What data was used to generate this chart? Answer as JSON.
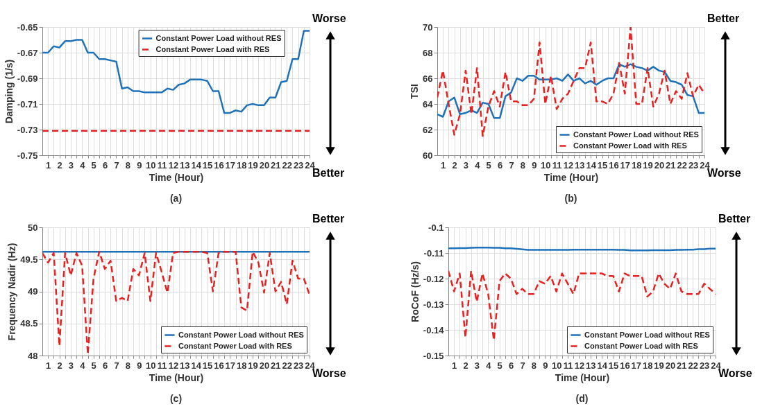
{
  "chart_data": [
    {
      "type": "line",
      "xlabel": "Time (Hour)",
      "ylabel": "Damping (1/s)",
      "annotations": [
        "Worse",
        "Better",
        "(a)"
      ],
      "legend": "top right",
      "grid": true,
      "x": [
        0.5,
        1,
        1.5,
        2,
        2.5,
        3,
        3.5,
        4,
        4.5,
        5,
        5.5,
        6,
        6.5,
        7,
        7.5,
        8,
        8.5,
        9,
        9.5,
        10,
        10.5,
        11,
        11.5,
        12,
        12.5,
        13,
        13.5,
        14,
        14.5,
        15,
        15.5,
        16,
        16.5,
        17,
        17.5,
        18,
        18.5,
        19,
        19.5,
        20,
        20.5,
        21,
        21.5,
        22,
        22.5,
        23,
        23.5,
        24
      ],
      "xlim": [
        0.5,
        24
      ],
      "ylim": [
        -0.75,
        -0.65
      ],
      "yticks": [
        -0.75,
        -0.73,
        -0.71,
        -0.69,
        -0.67,
        -0.65
      ],
      "xticks": [
        1,
        {
          "value": 1.5,
          "label": null
        },
        2,
        {
          "value": 2.5,
          "label": null
        },
        3,
        {
          "value": 3.5,
          "label": null
        },
        4,
        {
          "value": 4.5,
          "label": null
        },
        5,
        {
          "value": 5.5,
          "label": null
        },
        6,
        {
          "value": 6.5,
          "label": null
        },
        7,
        {
          "value": 7.5,
          "label": null
        },
        8,
        {
          "value": 8.5,
          "label": null
        },
        9,
        {
          "value": 9.5,
          "label": null
        },
        10,
        {
          "value": 10.5,
          "label": null
        },
        11,
        {
          "value": 11.5,
          "label": null
        },
        12,
        {
          "value": 12.5,
          "label": null
        },
        13,
        {
          "value": 13.5,
          "label": null
        },
        14,
        {
          "value": 14.5,
          "label": null
        },
        15,
        {
          "value": 15.5,
          "label": null
        },
        16,
        {
          "value": 16.5,
          "label": null
        },
        17,
        {
          "value": 17.5,
          "label": null
        },
        18,
        {
          "value": 18.5,
          "label": null
        },
        19,
        {
          "value": 19.5,
          "label": null
        },
        20,
        {
          "value": 20.5,
          "label": null
        },
        21,
        {
          "value": 21.5,
          "label": null
        },
        22,
        {
          "value": 22.5,
          "label": null
        },
        23,
        {
          "value": 23.5,
          "label": null
        },
        24
      ],
      "series": [
        {
          "name": "Constant Power Load without RES",
          "color": "#1f72b8",
          "line_style": "solid",
          "values": [
            -0.67,
            -0.67,
            -0.665,
            -0.666,
            -0.661,
            -0.661,
            -0.66,
            -0.66,
            -0.67,
            -0.67,
            -0.675,
            -0.675,
            -0.676,
            -0.677,
            -0.698,
            -0.697,
            -0.7,
            -0.7,
            -0.701,
            -0.701,
            -0.701,
            -0.701,
            -0.698,
            -0.699,
            -0.695,
            -0.694,
            -0.691,
            -0.691,
            -0.691,
            -0.692,
            -0.7,
            -0.7,
            -0.717,
            -0.717,
            -0.715,
            -0.716,
            -0.711,
            -0.71,
            -0.711,
            -0.711,
            -0.705,
            -0.705,
            -0.693,
            -0.692,
            -0.675,
            -0.675,
            -0.653,
            -0.653
          ]
        },
        {
          "name": "Constant Power Load with RES",
          "color": "#e8201f",
          "line_style": "dashed",
          "values": [
            -0.731,
            -0.731,
            -0.731,
            -0.731,
            -0.731,
            -0.731,
            -0.731,
            -0.731,
            -0.731,
            -0.731,
            -0.731,
            -0.731,
            -0.731,
            -0.731,
            -0.731,
            -0.731,
            -0.731,
            -0.731,
            -0.731,
            -0.731,
            -0.731,
            -0.731,
            -0.731,
            -0.731,
            -0.731,
            -0.731,
            -0.731,
            -0.731,
            -0.731,
            -0.731,
            -0.731,
            -0.731,
            -0.731,
            -0.731,
            -0.731,
            -0.731,
            -0.731,
            -0.731,
            -0.731,
            -0.731,
            -0.731,
            -0.731,
            -0.731,
            -0.731,
            -0.731,
            -0.731,
            -0.731,
            -0.731
          ]
        }
      ]
    },
    {
      "type": "line",
      "xlabel": "Time (Hour)",
      "ylabel": "TSI",
      "annotations": [
        "Better",
        "Worse",
        "(b)"
      ],
      "legend": "bottom right",
      "grid": true,
      "x": [
        0.5,
        1,
        1.5,
        2,
        2.5,
        3,
        3.5,
        4,
        4.5,
        5,
        5.5,
        6,
        6.5,
        7,
        7.5,
        8,
        8.5,
        9,
        9.5,
        10,
        10.5,
        11,
        11.5,
        12,
        12.5,
        13,
        13.5,
        14,
        14.5,
        15,
        15.5,
        16,
        16.5,
        17,
        17.5,
        18,
        18.5,
        19,
        19.5,
        20,
        20.5,
        21,
        21.5,
        22,
        22.5,
        23,
        23.5,
        24
      ],
      "xlim": [
        0.5,
        24
      ],
      "ylim": [
        60,
        70
      ],
      "yticks": [
        60,
        62,
        64,
        66,
        68,
        70
      ],
      "xticks": [
        1,
        {
          "value": 1.5,
          "label": null
        },
        2,
        {
          "value": 2.5,
          "label": null
        },
        3,
        {
          "value": 3.5,
          "label": null
        },
        4,
        {
          "value": 4.5,
          "label": null
        },
        5,
        {
          "value": 5.5,
          "label": null
        },
        6,
        {
          "value": 6.5,
          "label": null
        },
        7,
        {
          "value": 7.5,
          "label": null
        },
        8,
        {
          "value": 8.5,
          "label": null
        },
        9,
        {
          "value": 9.5,
          "label": null
        },
        10,
        {
          "value": 10.5,
          "label": null
        },
        11,
        {
          "value": 11.5,
          "label": null
        },
        12,
        {
          "value": 12.5,
          "label": null
        },
        13,
        {
          "value": 13.5,
          "label": null
        },
        14,
        {
          "value": 14.5,
          "label": null
        },
        15,
        {
          "value": 15.5,
          "label": null
        },
        16,
        {
          "value": 16.5,
          "label": null
        },
        17,
        {
          "value": 17.5,
          "label": null
        },
        18,
        {
          "value": 18.5,
          "label": null
        },
        19,
        {
          "value": 19.5,
          "label": null
        },
        20,
        {
          "value": 20.5,
          "label": null
        },
        21,
        {
          "value": 21.5,
          "label": null
        },
        22,
        {
          "value": 22.5,
          "label": null
        },
        23,
        {
          "value": 23.5,
          "label": null
        },
        24
      ],
      "series": [
        {
          "name": "Constant Power Load without RES",
          "color": "#1f72b8",
          "line_style": "solid",
          "values": [
            63.2,
            63.0,
            64.2,
            64.5,
            63.2,
            63.3,
            63.5,
            63.3,
            64.1,
            64.0,
            62.9,
            62.9,
            64.6,
            64.9,
            66.0,
            65.8,
            66.2,
            66.2,
            65.9,
            65.9,
            65.9,
            66.0,
            65.8,
            66.3,
            65.8,
            66.0,
            65.6,
            65.8,
            65.5,
            65.8,
            66.0,
            66.0,
            67.1,
            66.9,
            67.1,
            66.9,
            66.8,
            66.6,
            66.9,
            66.6,
            66.5,
            65.8,
            65.7,
            65.5,
            64.7,
            64.6,
            63.3,
            63.3
          ]
        },
        {
          "name": "Constant Power Load with RES",
          "color": "#e8201f",
          "line_style": "dashed",
          "values": [
            64.5,
            66.6,
            64.0,
            61.6,
            63.2,
            66.6,
            63.2,
            66.8,
            61.5,
            63.8,
            65.0,
            63.8,
            66.5,
            64.2,
            64.2,
            63.9,
            63.9,
            64.4,
            68.8,
            64.0,
            66.2,
            63.6,
            64.4,
            64.8,
            65.8,
            66.8,
            66.8,
            68.8,
            64.2,
            64.2,
            64.0,
            64.8,
            67.2,
            64.8,
            70.0,
            64.0,
            64.0,
            66.8,
            63.8,
            64.8,
            66.6,
            64.0,
            65.0,
            64.4,
            66.4,
            64.6,
            65.5,
            64.8
          ]
        }
      ]
    },
    {
      "type": "line",
      "xlabel": "Time (Hour)",
      "ylabel": "Frequency Nadir (Hz)",
      "annotations": [
        "Better",
        "Worse",
        "(c)"
      ],
      "legend": "bottom right",
      "grid": true,
      "x": [
        0.5,
        1,
        1.5,
        2,
        2.5,
        3,
        3.5,
        4,
        4.5,
        5,
        5.5,
        6,
        6.5,
        7,
        7.5,
        8,
        8.5,
        9,
        9.5,
        10,
        10.5,
        11,
        11.5,
        12,
        12.5,
        13,
        13.5,
        14,
        14.5,
        15,
        15.5,
        16,
        16.5,
        17,
        17.5,
        18,
        18.5,
        19,
        19.5,
        20,
        20.5,
        21,
        21.5,
        22,
        22.5,
        23,
        23.5,
        24
      ],
      "xlim": [
        0.5,
        24
      ],
      "ylim": [
        48,
        50
      ],
      "yticks": [
        48,
        48.5,
        49,
        49.5,
        50
      ],
      "xticks": [
        1,
        {
          "value": 1.5,
          "label": null
        },
        2,
        {
          "value": 2.5,
          "label": null
        },
        3,
        {
          "value": 3.5,
          "label": null
        },
        4,
        {
          "value": 4.5,
          "label": null
        },
        5,
        {
          "value": 5.5,
          "label": null
        },
        6,
        {
          "value": 6.5,
          "label": null
        },
        7,
        {
          "value": 7.5,
          "label": null
        },
        8,
        {
          "value": 8.5,
          "label": null
        },
        9,
        {
          "value": 9.5,
          "label": null
        },
        10,
        {
          "value": 10.5,
          "label": null
        },
        11,
        {
          "value": 11.5,
          "label": null
        },
        12,
        {
          "value": 12.5,
          "label": null
        },
        13,
        {
          "value": 13.5,
          "label": null
        },
        14,
        {
          "value": 14.5,
          "label": null
        },
        15,
        {
          "value": 15.5,
          "label": null
        },
        16,
        {
          "value": 16.5,
          "label": null
        },
        17,
        {
          "value": 17.5,
          "label": null
        },
        18,
        {
          "value": 18.5,
          "label": null
        },
        19,
        {
          "value": 19.5,
          "label": null
        },
        20,
        {
          "value": 20.5,
          "label": null
        },
        21,
        {
          "value": 21.5,
          "label": null
        },
        22,
        {
          "value": 22.5,
          "label": null
        },
        23,
        {
          "value": 23.5,
          "label": null
        },
        24
      ],
      "series": [
        {
          "name": "Constant Power Load without RES",
          "color": "#1f72b8",
          "line_style": "solid",
          "values": [
            49.62,
            49.62,
            49.62,
            49.62,
            49.62,
            49.62,
            49.62,
            49.62,
            49.62,
            49.62,
            49.62,
            49.62,
            49.62,
            49.62,
            49.62,
            49.62,
            49.62,
            49.62,
            49.62,
            49.62,
            49.62,
            49.62,
            49.62,
            49.62,
            49.62,
            49.62,
            49.62,
            49.62,
            49.62,
            49.62,
            49.62,
            49.62,
            49.62,
            49.62,
            49.62,
            49.62,
            49.62,
            49.62,
            49.62,
            49.62,
            49.62,
            49.62,
            49.62,
            49.62,
            49.62,
            49.62,
            49.62,
            49.62
          ]
        },
        {
          "name": "Constant Power Load with RES",
          "color": "#e8201f",
          "line_style": "dashed",
          "values": [
            49.6,
            49.45,
            49.6,
            48.15,
            49.6,
            49.25,
            49.6,
            49.4,
            48.02,
            49.2,
            49.62,
            49.35,
            49.48,
            48.85,
            48.9,
            48.85,
            49.35,
            49.25,
            49.6,
            48.85,
            49.6,
            49.3,
            48.98,
            49.6,
            49.62,
            49.62,
            49.62,
            49.62,
            49.62,
            49.6,
            49.0,
            49.6,
            49.62,
            49.62,
            49.62,
            48.75,
            48.7,
            49.62,
            49.45,
            48.98,
            49.6,
            49.0,
            49.15,
            48.8,
            49.48,
            49.2,
            49.2,
            48.95
          ]
        }
      ]
    },
    {
      "type": "line",
      "xlabel": "Time (Hour)",
      "ylabel": "RoCoF (Hz/s)",
      "annotations": [
        "Better",
        "Worse",
        "(d)"
      ],
      "legend": "bottom right",
      "grid": true,
      "x": [
        0.5,
        1,
        1.5,
        2,
        2.5,
        3,
        3.5,
        4,
        4.5,
        5,
        5.5,
        6,
        6.5,
        7,
        7.5,
        8,
        8.5,
        9,
        9.5,
        10,
        10.5,
        11,
        11.5,
        12,
        12.5,
        13,
        13.5,
        14,
        14.5,
        15,
        15.5,
        16,
        16.5,
        17,
        17.5,
        18,
        18.5,
        19,
        19.5,
        20,
        20.5,
        21,
        21.5,
        22,
        22.5,
        23,
        23.5,
        24
      ],
      "xlim": [
        0.5,
        24
      ],
      "ylim": [
        -0.15,
        -0.1
      ],
      "yticks": [
        -0.15,
        -0.14,
        -0.13,
        -0.12,
        -0.11,
        -0.1
      ],
      "xticks": [
        1,
        {
          "value": 1.5,
          "label": null
        },
        2,
        {
          "value": 2.5,
          "label": null
        },
        3,
        {
          "value": 3.5,
          "label": null
        },
        4,
        {
          "value": 4.5,
          "label": null
        },
        5,
        {
          "value": 5.5,
          "label": null
        },
        6,
        {
          "value": 6.5,
          "label": null
        },
        7,
        {
          "value": 7.5,
          "label": null
        },
        8,
        {
          "value": 8.5,
          "label": null
        },
        9,
        {
          "value": 9.5,
          "label": null
        },
        10,
        {
          "value": 10.5,
          "label": null
        },
        11,
        {
          "value": 11.5,
          "label": null
        },
        12,
        {
          "value": 12.5,
          "label": null
        },
        13,
        {
          "value": 13.5,
          "label": null
        },
        14,
        {
          "value": 14.5,
          "label": null
        },
        15,
        {
          "value": 15.5,
          "label": null
        },
        16,
        {
          "value": 16.5,
          "label": null
        },
        17,
        {
          "value": 17.5,
          "label": null
        },
        18,
        {
          "value": 18.5,
          "label": null
        },
        19,
        {
          "value": 19.5,
          "label": null
        },
        20,
        {
          "value": 20.5,
          "label": null
        },
        21,
        {
          "value": 21.5,
          "label": null
        },
        22,
        {
          "value": 22.5,
          "label": null
        },
        23,
        {
          "value": 23.5,
          "label": null
        },
        24
      ],
      "series": [
        {
          "name": "Constant Power Load without RES",
          "color": "#1f72b8",
          "line_style": "solid",
          "values": [
            -0.1082,
            -0.1082,
            -0.1081,
            -0.1081,
            -0.108,
            -0.1079,
            -0.1079,
            -0.1079,
            -0.108,
            -0.108,
            -0.1082,
            -0.1082,
            -0.1084,
            -0.1086,
            -0.1088,
            -0.1088,
            -0.1088,
            -0.1088,
            -0.1088,
            -0.1088,
            -0.1088,
            -0.1088,
            -0.1087,
            -0.1087,
            -0.1087,
            -0.1087,
            -0.1087,
            -0.1087,
            -0.1087,
            -0.1087,
            -0.1088,
            -0.1088,
            -0.109,
            -0.109,
            -0.109,
            -0.109,
            -0.1089,
            -0.1089,
            -0.1089,
            -0.1089,
            -0.1088,
            -0.1088,
            -0.1087,
            -0.1087,
            -0.1085,
            -0.1085,
            -0.1083,
            -0.1083
          ]
        },
        {
          "name": "Constant Power Load with RES",
          "color": "#e8201f",
          "line_style": "dashed",
          "values": [
            -0.117,
            -0.125,
            -0.118,
            -0.143,
            -0.117,
            -0.129,
            -0.118,
            -0.126,
            -0.144,
            -0.121,
            -0.118,
            -0.12,
            -0.126,
            -0.124,
            -0.126,
            -0.126,
            -0.121,
            -0.122,
            -0.119,
            -0.125,
            -0.118,
            -0.122,
            -0.126,
            -0.118,
            -0.118,
            -0.118,
            -0.118,
            -0.118,
            -0.119,
            -0.119,
            -0.125,
            -0.118,
            -0.119,
            -0.119,
            -0.119,
            -0.127,
            -0.125,
            -0.118,
            -0.122,
            -0.124,
            -0.118,
            -0.125,
            -0.126,
            -0.126,
            -0.126,
            -0.122,
            -0.124,
            -0.126
          ]
        }
      ]
    }
  ]
}
